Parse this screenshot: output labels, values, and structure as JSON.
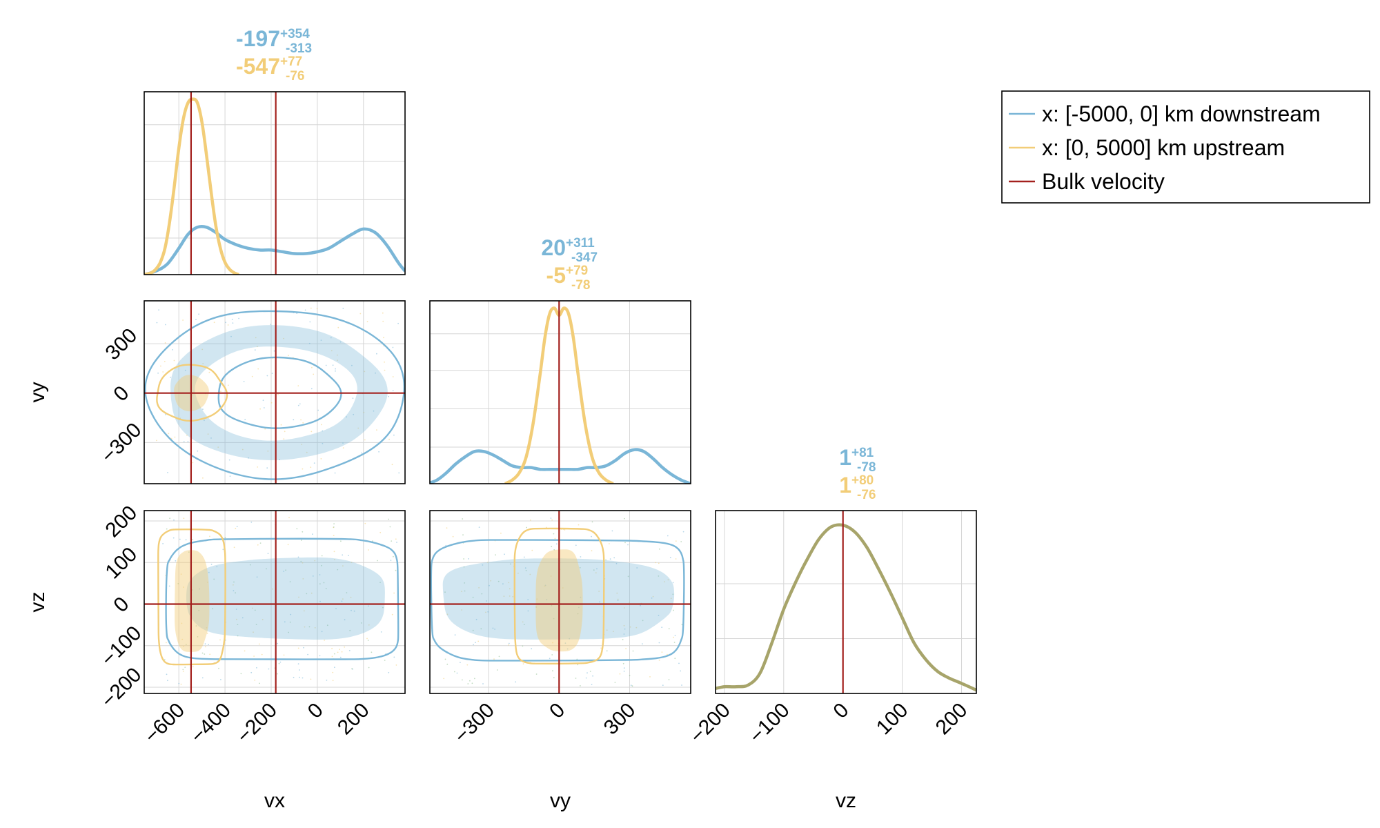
{
  "colors": {
    "downstream": "#7ab6d7",
    "upstream": "#f2cd78",
    "bulk": "#a3201d",
    "overlap": "#a7a46a"
  },
  "legend": {
    "placement": "top-right",
    "entries": [
      {
        "label": "x: [-5000, 0] km downstream",
        "color": "#7ab6d7"
      },
      {
        "label": "x: [0, 5000] km upstream",
        "color": "#f2cd78"
      },
      {
        "label": "Bulk velocity",
        "color": "#a3201d"
      }
    ]
  },
  "chart_data": {
    "type": "corner",
    "variables": [
      "vx",
      "vy",
      "vz"
    ],
    "xlabels": [
      "vx",
      "vy",
      "vz"
    ],
    "ylabels": [
      "",
      "vy",
      "vz"
    ],
    "ranges": {
      "vx": [
        -750,
        380
      ],
      "vy": [
        -550,
        560
      ],
      "vz": [
        -215,
        225
      ]
    },
    "ticks": {
      "vx": [
        -600,
        -400,
        -200,
        0,
        200
      ],
      "vy": [
        -300,
        0,
        300
      ],
      "vz": [
        -200,
        -100,
        0,
        100,
        200
      ]
    },
    "tick_labels": {
      "vx": [
        "−600",
        "−400",
        "−200",
        "0",
        "200"
      ],
      "vy": [
        "−300",
        "0",
        "300"
      ],
      "vz": [
        "−200",
        "−100",
        "0",
        "100",
        "200"
      ]
    },
    "bulk_velocity": {
      "vx": -180,
      "vy": 0,
      "vz": 0,
      "vx_upstream": -547
    },
    "annotations": {
      "vx": [
        {
          "series": "downstream",
          "median": "-197",
          "plus": "+354",
          "minus": "-313"
        },
        {
          "series": "upstream",
          "median": "-547",
          "plus": "+77",
          "minus": "-76"
        }
      ],
      "vy": [
        {
          "series": "downstream",
          "median": "20",
          "plus": "+311",
          "minus": "-347"
        },
        {
          "series": "upstream",
          "median": "-5",
          "plus": "+79",
          "minus": "-78"
        }
      ],
      "vz": [
        {
          "series": "downstream",
          "median": "1",
          "plus": "+81",
          "minus": "-78"
        },
        {
          "series": "upstream",
          "median": "1",
          "plus": "+80",
          "minus": "-76"
        }
      ]
    },
    "marginals": {
      "vx": {
        "downstream": {
          "x": [
            -750,
            -700,
            -650,
            -600,
            -560,
            -520,
            -480,
            -440,
            -400,
            -350,
            -300,
            -250,
            -200,
            -150,
            -100,
            -50,
            0,
            50,
            100,
            150,
            200,
            250,
            300,
            350,
            380
          ],
          "y": [
            0.0,
            0.02,
            0.06,
            0.15,
            0.23,
            0.27,
            0.27,
            0.24,
            0.2,
            0.17,
            0.15,
            0.14,
            0.14,
            0.13,
            0.12,
            0.12,
            0.13,
            0.15,
            0.19,
            0.23,
            0.26,
            0.24,
            0.17,
            0.07,
            0.02
          ]
        },
        "upstream": {
          "x": [
            -750,
            -720,
            -700,
            -680,
            -660,
            -640,
            -620,
            -600,
            -580,
            -560,
            -540,
            -520,
            -500,
            -480,
            -460,
            -440,
            -420,
            -400,
            -380,
            -360,
            -340
          ],
          "y": [
            0.0,
            0.01,
            0.03,
            0.07,
            0.15,
            0.3,
            0.5,
            0.72,
            0.89,
            0.98,
            1.0,
            0.98,
            0.87,
            0.68,
            0.47,
            0.28,
            0.15,
            0.07,
            0.03,
            0.01,
            0.0
          ]
        }
      },
      "vy": {
        "downstream": {
          "x": [
            -560,
            -520,
            -480,
            -440,
            -400,
            -360,
            -320,
            -280,
            -240,
            -200,
            -160,
            -120,
            -80,
            -40,
            0,
            40,
            80,
            120,
            160,
            200,
            240,
            280,
            320,
            360,
            400,
            440,
            480,
            520,
            560
          ],
          "y": [
            0.0,
            0.02,
            0.06,
            0.11,
            0.15,
            0.18,
            0.18,
            0.16,
            0.13,
            0.1,
            0.09,
            0.09,
            0.08,
            0.08,
            0.08,
            0.08,
            0.08,
            0.09,
            0.09,
            0.1,
            0.13,
            0.17,
            0.19,
            0.18,
            0.14,
            0.09,
            0.05,
            0.02,
            0.0
          ]
        },
        "upstream": {
          "x": [
            -230,
            -200,
            -170,
            -140,
            -110,
            -80,
            -60,
            -40,
            -20,
            0,
            20,
            40,
            60,
            80,
            110,
            140,
            170,
            200,
            230
          ],
          "y": [
            0.0,
            0.02,
            0.06,
            0.15,
            0.34,
            0.62,
            0.82,
            0.95,
            0.98,
            0.94,
            0.98,
            0.95,
            0.82,
            0.62,
            0.34,
            0.15,
            0.06,
            0.02,
            0.0
          ]
        }
      },
      "vz": {
        "downstream": {
          "x": [
            -215,
            -200,
            -180,
            -160,
            -140,
            -120,
            -100,
            -80,
            -60,
            -40,
            -20,
            0,
            20,
            40,
            60,
            80,
            100,
            120,
            140,
            160,
            180,
            200,
            225
          ],
          "y": [
            0.03,
            0.04,
            0.04,
            0.05,
            0.12,
            0.3,
            0.5,
            0.66,
            0.8,
            0.92,
            0.99,
            1.0,
            0.96,
            0.87,
            0.74,
            0.6,
            0.45,
            0.3,
            0.2,
            0.13,
            0.09,
            0.06,
            0.02
          ]
        },
        "upstream": {
          "x": [
            -215,
            -200,
            -180,
            -160,
            -140,
            -120,
            -100,
            -80,
            -60,
            -40,
            -20,
            0,
            20,
            40,
            60,
            80,
            100,
            120,
            140,
            160,
            180,
            200,
            225
          ],
          "y": [
            0.03,
            0.04,
            0.04,
            0.05,
            0.12,
            0.3,
            0.5,
            0.66,
            0.8,
            0.92,
            0.99,
            1.0,
            0.96,
            0.87,
            0.74,
            0.6,
            0.45,
            0.3,
            0.2,
            0.13,
            0.09,
            0.06,
            0.02
          ]
        }
      }
    },
    "joint_contours": {
      "vx_vy": {
        "downstream": [
          {
            "level": "inner",
            "filled": false,
            "cx": -170,
            "cy": 0,
            "rx": 265,
            "ry": 215
          },
          {
            "level": "band",
            "filled": true,
            "cx": -180,
            "cy": 0,
            "rx": 470,
            "ry": 410,
            "rx_in": 350,
            "ry_in": 285
          },
          {
            "level": "outer",
            "filled": false,
            "cx": -180,
            "cy": 0,
            "rx": 560,
            "ry": 510
          }
        ],
        "upstream": [
          {
            "level": "inner",
            "filled": true,
            "cx": -547,
            "cy": 0,
            "rx": 75,
            "ry": 110
          },
          {
            "level": "outer",
            "filled": false,
            "cx": -547,
            "cy": 0,
            "rx": 150,
            "ry": 170
          }
        ]
      },
      "vx_vz": {
        "downstream": [
          {
            "level": "inner",
            "filled": true,
            "x": [
              -560,
              300
            ],
            "z": [
              -85,
              110
            ]
          },
          {
            "level": "outer",
            "filled": false,
            "x": [
              -650,
              355
            ],
            "z": [
              -135,
              155
            ]
          }
        ],
        "upstream": [
          {
            "level": "inner",
            "filled": true,
            "x": [
              -620,
              -470
            ],
            "z": [
              -115,
              130
            ]
          },
          {
            "level": "outer",
            "filled": false,
            "x": [
              -690,
              -400
            ],
            "z": [
              -145,
              180
            ]
          }
        ]
      },
      "vy_vz": {
        "downstream": [
          {
            "level": "inner",
            "filled": true,
            "y": [
              -500,
              480
            ],
            "z": [
              -85,
              110
            ]
          },
          {
            "level": "outer",
            "filled": false,
            "y": [
              -540,
              535
            ],
            "z": [
              -135,
              155
            ]
          }
        ],
        "upstream": [
          {
            "level": "inner",
            "filled": true,
            "y": [
              -100,
              100
            ],
            "z": [
              -115,
              130
            ]
          },
          {
            "level": "outer",
            "filled": false,
            "y": [
              -190,
              190
            ],
            "z": [
              -145,
              180
            ]
          }
        ]
      }
    }
  }
}
